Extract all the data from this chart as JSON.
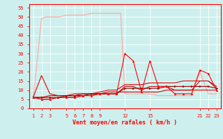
{
  "xlabel": "Vent moyen/en rafales ( km/h )",
  "bg_color": "#cdf0ee",
  "grid_color": "#aadddd",
  "grid_white": "#ffffff",
  "axis_color": "#ff0000",
  "text_color": "#ff0000",
  "xlim": [
    0.5,
    23.5
  ],
  "ylim": [
    0,
    57
  ],
  "yticks": [
    0,
    5,
    10,
    15,
    20,
    25,
    30,
    35,
    40,
    45,
    50,
    55
  ],
  "xticks": [
    1,
    2,
    3,
    5,
    6,
    7,
    8,
    9,
    12,
    15,
    21,
    22,
    23
  ],
  "line_pink_x": [
    1,
    2,
    2.5,
    3,
    4,
    5,
    6,
    7,
    8,
    9,
    10,
    11,
    11.5,
    12,
    13,
    14,
    15,
    16,
    17,
    18,
    19,
    20,
    21,
    22,
    23
  ],
  "line_pink_y": [
    5,
    49,
    50,
    50,
    50,
    51,
    51,
    51,
    52,
    52,
    52,
    52,
    52,
    8,
    8,
    8,
    8,
    7,
    7,
    7,
    7,
    7,
    20,
    8,
    8
  ],
  "line_red1_x": [
    1,
    2,
    3,
    4,
    5,
    6,
    7,
    8,
    9,
    10,
    11,
    12,
    13,
    14,
    15,
    16,
    17,
    18,
    19,
    20,
    21,
    22,
    23
  ],
  "line_red1_y": [
    6,
    5,
    5,
    6,
    6,
    6,
    7,
    7,
    8,
    8,
    8,
    30,
    26,
    9,
    26,
    12,
    12,
    8,
    8,
    8,
    21,
    19,
    10
  ],
  "line_red2_x": [
    1,
    2,
    3,
    4,
    5,
    6,
    7,
    8,
    9,
    10,
    11,
    12,
    13,
    14,
    15,
    16,
    17,
    18,
    19,
    20,
    21,
    22,
    23
  ],
  "line_red2_y": [
    6,
    18,
    8,
    7,
    7,
    8,
    8,
    8,
    9,
    10,
    10,
    13,
    13,
    13,
    14,
    14,
    14,
    14,
    15,
    15,
    15,
    15,
    12
  ],
  "line_red3_x": [
    1,
    2,
    3,
    4,
    5,
    6,
    7,
    8,
    9,
    10,
    11,
    12,
    13,
    14,
    15,
    16,
    17,
    18,
    19,
    20,
    21,
    22,
    23
  ],
  "line_red3_y": [
    6,
    6,
    6,
    6,
    7,
    7,
    7,
    8,
    8,
    8,
    8,
    11,
    11,
    11,
    11,
    11,
    12,
    12,
    12,
    12,
    12,
    12,
    11
  ],
  "line_red4_x": [
    1,
    2,
    3,
    4,
    5,
    6,
    7,
    8,
    9,
    10,
    11,
    12,
    13,
    14,
    15,
    16,
    17,
    18,
    19,
    20,
    21,
    22,
    23
  ],
  "line_red4_y": [
    6,
    6,
    7,
    7,
    7,
    7,
    8,
    8,
    8,
    9,
    9,
    9,
    9,
    9,
    9,
    9,
    10,
    10,
    10,
    10,
    10,
    10,
    10
  ],
  "line_dark_x": [
    1,
    2,
    3,
    4,
    5,
    6,
    7,
    8,
    9,
    10,
    11,
    12,
    13,
    14,
    15,
    16,
    17,
    18,
    19,
    20,
    21,
    22,
    23
  ],
  "line_dark_y": [
    6,
    5,
    5,
    6,
    6,
    6,
    7,
    7,
    8,
    8,
    8,
    12,
    12,
    10,
    12,
    12,
    12,
    10,
    10,
    10,
    15,
    15,
    11
  ]
}
